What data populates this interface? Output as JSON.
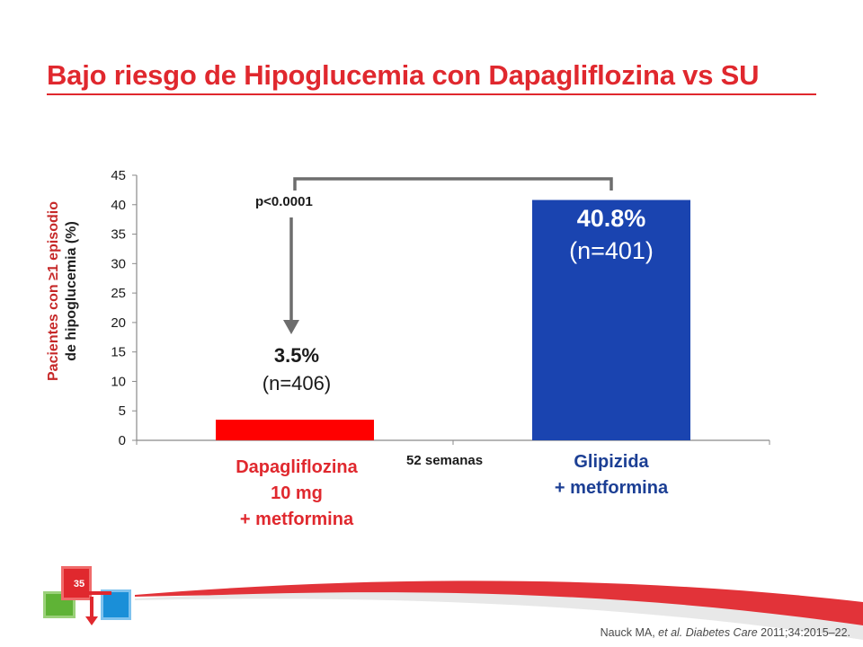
{
  "slide": {
    "title": "Bajo riesgo de Hipoglucemia con Dapagliflozina vs SU",
    "slide_number": "35",
    "footnote_pre": "Nauck MA, ",
    "footnote_italic": "et al. Diabetes Care",
    "footnote_post": " 2011;34:2015–22."
  },
  "chart_data": {
    "type": "bar",
    "ylabel_line1": "Pacientes con ≥1 episodio",
    "ylabel_line2": "de hipoglucemia (%)",
    "ylim": [
      0,
      45
    ],
    "yticks": [
      "0",
      "5",
      "10",
      "15",
      "20",
      "25",
      "30",
      "35",
      "40",
      "45"
    ],
    "xlabel": "52 semanas",
    "significance": "p<0.0001",
    "categories": [
      [
        "Dapagliflozina",
        "10 mg",
        "+ metformina"
      ],
      [
        "Glipizida",
        "+ metformina"
      ]
    ],
    "values": [
      3.5,
      40.8
    ],
    "colors": [
      "#ff0000",
      "#1a44b0"
    ],
    "data_labels": [
      {
        "pct": "3.5%",
        "n": "(n=406)"
      },
      {
        "pct": "40.8%",
        "n": "(n=401)"
      }
    ]
  }
}
